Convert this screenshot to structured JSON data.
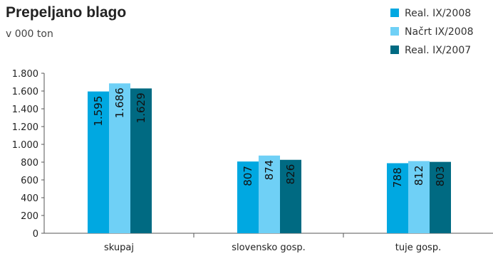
{
  "chart_data": {
    "type": "bar",
    "title": "Prepeljano blago",
    "subtitle": "v 000 ton",
    "categories": [
      "skupaj",
      "slovensko gosp.",
      "tuje gosp."
    ],
    "series": [
      {
        "name": "Real. IX/2008",
        "color": "#00a8e1",
        "values": [
          1595,
          807,
          788
        ],
        "value_labels": [
          "1.595",
          "807",
          "788"
        ]
      },
      {
        "name": "Načrt IX/2008",
        "color": "#6fd0f6",
        "values": [
          1686,
          874,
          812
        ],
        "value_labels": [
          "1.686",
          "874",
          "812"
        ]
      },
      {
        "name": "Real. IX/2007",
        "color": "#006a82",
        "values": [
          1629,
          826,
          803
        ],
        "value_labels": [
          "1.629",
          "826",
          "803"
        ]
      }
    ],
    "ylim": [
      0,
      1800
    ],
    "yticks": [
      0,
      200,
      400,
      600,
      800,
      {
        "value": 1000,
        "label": "1.000"
      },
      {
        "value": 1200,
        "label": "1.200"
      },
      {
        "value": 1400,
        "label": "1.400"
      },
      {
        "value": 1600,
        "label": "1.600"
      },
      {
        "value": 1800,
        "label": "1.800"
      }
    ],
    "legend": "top-right"
  }
}
